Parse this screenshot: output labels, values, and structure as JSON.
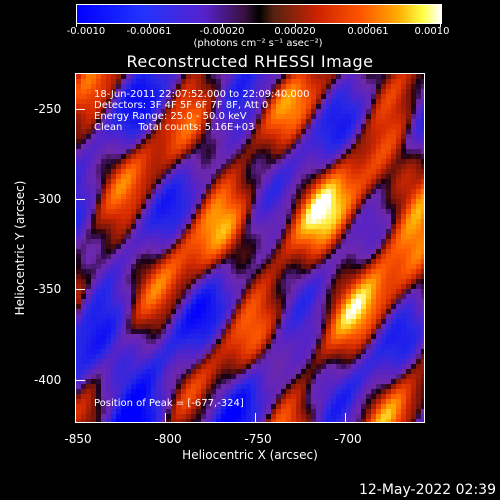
{
  "colorbar": {
    "ticks": [
      "-0.0010",
      "-0.00061",
      "-0.00020",
      "0.00020",
      "0.00061",
      "0.0010"
    ],
    "units": "(photons cm⁻² s⁻¹ asec⁻²)"
  },
  "title": "Reconstructed RHESSI Image",
  "info": {
    "time_range": "18-Jun-2011 22:07:52.000 to 22:09:40.000",
    "detectors": "Detectors: 3F 4F 5F 6F 7F 8F, Att 0",
    "energy": "Energy Range: 25.0 - 50.0 keV",
    "clean": "Clean     Total counts: 5.16E+03",
    "peak": "Position of Peak = [-677,-324]"
  },
  "axes": {
    "xlabel": "Heliocentric X (arcsec)",
    "ylabel": "Heliocentric Y (arcsec)",
    "xticks": [
      "-850",
      "-800",
      "-750",
      "-700"
    ],
    "yticks": [
      "-250",
      "-300",
      "-350",
      "-400"
    ]
  },
  "timestamp": "12-May-2022 02:39"
}
